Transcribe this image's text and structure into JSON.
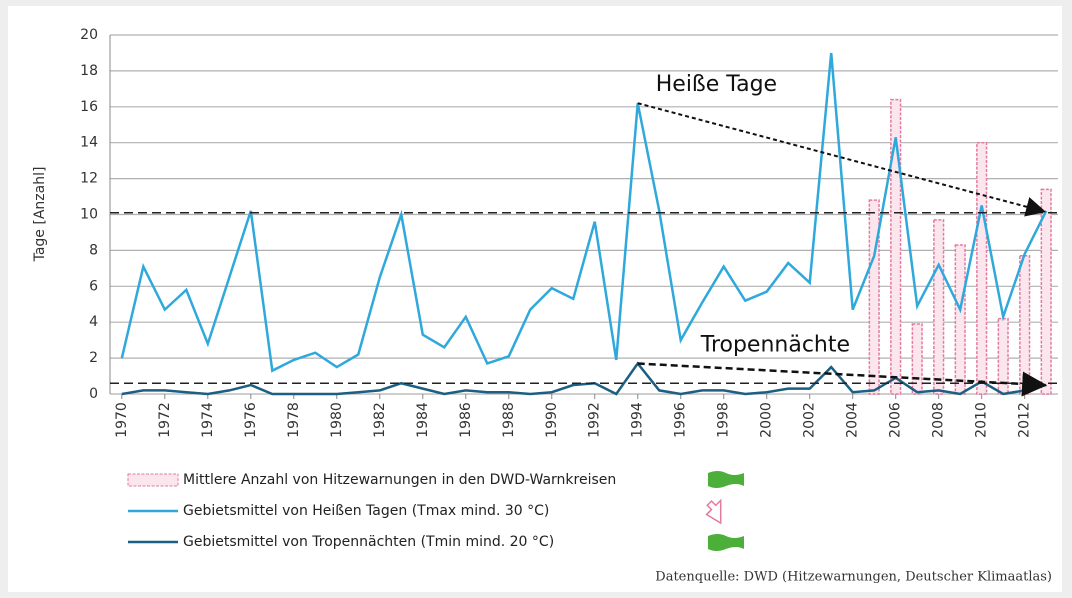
{
  "chart_data": {
    "type": "line",
    "y_label": "Tage [Anzahl]",
    "x": [
      1970,
      1971,
      1972,
      1973,
      1974,
      1975,
      1976,
      1977,
      1978,
      1979,
      1980,
      1981,
      1982,
      1983,
      1984,
      1985,
      1986,
      1987,
      1988,
      1989,
      1990,
      1991,
      1992,
      1993,
      1994,
      1995,
      1996,
      1997,
      1998,
      1999,
      2000,
      2001,
      2002,
      2003,
      2004,
      2005,
      2006,
      2007,
      2008,
      2009,
      2010,
      2011,
      2012,
      2013
    ],
    "xlim": [
      1969.45,
      2013.55
    ],
    "xticks": [
      1970,
      1972,
      1974,
      1976,
      1978,
      1980,
      1982,
      1984,
      1986,
      1988,
      1990,
      1992,
      1994,
      1996,
      1998,
      2000,
      2002,
      2004,
      2006,
      2008,
      2010,
      2012
    ],
    "ylim": [
      0,
      20
    ],
    "yticks": [
      0,
      2,
      4,
      6,
      8,
      10,
      12,
      14,
      16,
      18,
      20
    ],
    "grid": true,
    "series": [
      {
        "name": "Mittlere Anzahl von Hitzewarnungen in den DWD-Warnkreisen",
        "type": "bar",
        "color": "#e37aa0",
        "values": [
          null,
          null,
          null,
          null,
          null,
          null,
          null,
          null,
          null,
          null,
          null,
          null,
          null,
          null,
          null,
          null,
          null,
          null,
          null,
          null,
          null,
          null,
          null,
          null,
          null,
          null,
          null,
          null,
          null,
          null,
          null,
          null,
          null,
          null,
          null,
          10.8,
          16.4,
          3.9,
          9.7,
          8.3,
          14.0,
          4.2,
          7.7,
          11.4
        ]
      },
      {
        "name": "Gebietsmittel von Heißen Tagen (Tmax mind. 30 °C)",
        "type": "line",
        "color": "#2fa8dc",
        "values": [
          2.0,
          7.1,
          4.7,
          5.8,
          2.8,
          6.5,
          10.2,
          1.3,
          1.9,
          2.3,
          1.5,
          2.2,
          6.5,
          10.0,
          3.3,
          2.6,
          4.3,
          1.7,
          2.1,
          4.7,
          5.9,
          5.3,
          9.6,
          1.9,
          16.2,
          10.2,
          3.0,
          5.1,
          7.1,
          5.2,
          5.7,
          7.3,
          6.2,
          19.0,
          4.7,
          7.7,
          14.3,
          4.9,
          7.2,
          4.7,
          10.5,
          4.3,
          7.8,
          10.2
        ]
      },
      {
        "name": "Gebietsmittel von Tropennächten (Tmin mind. 20 °C)",
        "type": "line",
        "color": "#1c5f82",
        "values": [
          0.0,
          0.2,
          0.2,
          0.1,
          0.0,
          0.2,
          0.5,
          0.0,
          0.0,
          0.0,
          0.0,
          0.1,
          0.2,
          0.6,
          0.3,
          0.0,
          0.2,
          0.1,
          0.1,
          0.0,
          0.1,
          0.5,
          0.6,
          0.0,
          1.7,
          0.2,
          0.0,
          0.2,
          0.2,
          0.0,
          0.1,
          0.3,
          0.3,
          1.5,
          0.1,
          0.2,
          0.9,
          0.1,
          0.2,
          0.0,
          0.7,
          0.0,
          0.2,
          0.5
        ]
      }
    ],
    "reference_lines": [
      10.1,
      0.6
    ],
    "trend_arrows": [
      {
        "label": "Heiße Tage",
        "from": [
          1994,
          16.2
        ],
        "to": [
          2013,
          10.2
        ]
      },
      {
        "label": "Tropennächte",
        "from": [
          1994,
          1.7
        ],
        "to": [
          2013,
          0.5
        ]
      }
    ],
    "source": "Datenquelle: DWD (Hitzewarnungen, Deutscher Klimaatlas)"
  }
}
